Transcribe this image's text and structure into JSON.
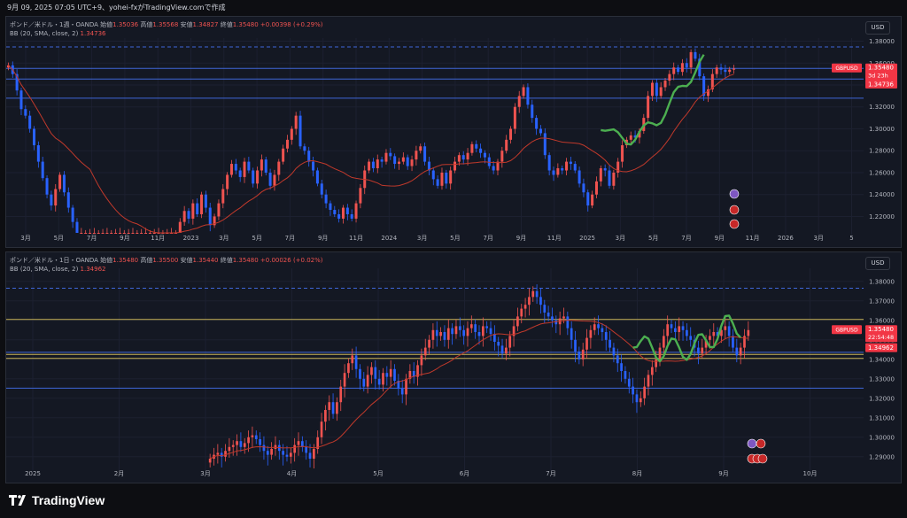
{
  "header_line": "9月 09, 2025 07:05 UTC+9、yohei-fxがTradingView.comで作成",
  "currency_button": "USD",
  "chart_data": [
    {
      "type": "candlestick",
      "panel": "weekly",
      "symbol_label": "ポンド／米ドル・1週・OANDA",
      "ohlc_labels": {
        "open": "始値",
        "high": "高値",
        "low": "安値",
        "close": "終値"
      },
      "open": "1.35036",
      "high": "1.35568",
      "low": "1.34827",
      "close": "1.35480",
      "change": "+0.00398 (+0.29%)",
      "indicator_label": "BB (20, SMA, close, 2)",
      "indicator_value": "1.34736",
      "ylim": [
        1.205,
        1.378
      ],
      "y_ticks": [
        "1.38000",
        "1.36000",
        "1.34000",
        "1.32000",
        "1.30000",
        "1.28000",
        "1.26000",
        "1.24000",
        "1.22000"
      ],
      "x_ticks": [
        "3月",
        "5月",
        "7月",
        "9月",
        "11月",
        "2023",
        "3月",
        "5月",
        "7月",
        "9月",
        "11月",
        "2024",
        "3月",
        "5月",
        "7月",
        "9月",
        "11月",
        "2025",
        "3月",
        "5月",
        "7月",
        "9月",
        "11月",
        "2026",
        "3月",
        "5"
      ],
      "price_tag": {
        "symbol": "GBPUSD",
        "price": "1.35480",
        "countdown": "3d 23h"
      },
      "bb_tag": "1.34736",
      "horizontal_levels": [
        1.3748,
        1.3552,
        1.3455,
        1.328
      ],
      "series_close": [
        1.358,
        1.35,
        1.335,
        1.318,
        1.312,
        1.3,
        1.285,
        1.27,
        1.255,
        1.24,
        1.23,
        1.245,
        1.258,
        1.242,
        1.228,
        1.215,
        1.205,
        1.205,
        1.205,
        1.205,
        1.205,
        1.205,
        1.205,
        1.205,
        1.205,
        1.205,
        1.205,
        1.205,
        1.205,
        1.205,
        1.205,
        1.205,
        1.205,
        1.205,
        1.205,
        1.205,
        1.205,
        1.205,
        1.205,
        1.205,
        1.215,
        1.225,
        1.218,
        1.232,
        1.222,
        1.24,
        1.228,
        1.212,
        1.22,
        1.232,
        1.245,
        1.258,
        1.268,
        1.262,
        1.256,
        1.27,
        1.262,
        1.25,
        1.262,
        1.272,
        1.26,
        1.248,
        1.258,
        1.27,
        1.282,
        1.29,
        1.3,
        1.312,
        1.284,
        1.28,
        1.27,
        1.262,
        1.25,
        1.24,
        1.232,
        1.226,
        1.222,
        1.218,
        1.228,
        1.222,
        1.218,
        1.232,
        1.246,
        1.262,
        1.27,
        1.264,
        1.272,
        1.27,
        1.278,
        1.275,
        1.268,
        1.27,
        1.274,
        1.266,
        1.272,
        1.28,
        1.284,
        1.27,
        1.262,
        1.254,
        1.248,
        1.26,
        1.25,
        1.262,
        1.27,
        1.276,
        1.272,
        1.278,
        1.286,
        1.282,
        1.278,
        1.274,
        1.266,
        1.262,
        1.27,
        1.28,
        1.29,
        1.3,
        1.32,
        1.33,
        1.338,
        1.322,
        1.31,
        1.3,
        1.296,
        1.276,
        1.262,
        1.258,
        1.264,
        1.262,
        1.27,
        1.268,
        1.262,
        1.25,
        1.242,
        1.23,
        1.24,
        1.252,
        1.264,
        1.262,
        1.248,
        1.26,
        1.27,
        1.285,
        1.29,
        1.294,
        1.292,
        1.298,
        1.31,
        1.33,
        1.342,
        1.33,
        1.338,
        1.344,
        1.35,
        1.356,
        1.352,
        1.36,
        1.356,
        1.37,
        1.364,
        1.348,
        1.33,
        1.336,
        1.35,
        1.356,
        1.354,
        1.352,
        1.354,
        1.355
      ]
    },
    {
      "type": "candlestick",
      "panel": "daily",
      "symbol_label": "ポンド／米ドル・1日・OANDA",
      "ohlc_labels": {
        "open": "始値",
        "high": "高値",
        "low": "安値",
        "close": "終値"
      },
      "open": "1.35480",
      "high": "1.35500",
      "low": "1.35440",
      "close": "1.35480",
      "change": "+0.00026 (+0.02%)",
      "indicator_label": "BB (20, SMA, close, 2)",
      "indicator_value": "1.34962",
      "ylim": [
        1.284,
        1.384
      ],
      "y_ticks": [
        "1.38000",
        "1.37000",
        "1.36000",
        "1.35000",
        "1.34000",
        "1.33000",
        "1.32000",
        "1.31000",
        "1.30000",
        "1.29000"
      ],
      "x_ticks": [
        "2025",
        "2月",
        "3月",
        "4月",
        "5月",
        "6月",
        "7月",
        "8月",
        "9月",
        "10月"
      ],
      "price_tag": {
        "symbol": "GBPUSD",
        "price": "1.35480",
        "countdown": "22:54:48"
      },
      "bb_tag": "1.34962",
      "horizontal_levels": [
        1.3765,
        1.3605,
        1.3436,
        1.3425,
        1.3405,
        1.3252
      ],
      "series_close": [
        1.289,
        1.291,
        1.292,
        1.29,
        1.293,
        1.295,
        1.296,
        1.298,
        1.295,
        1.297,
        1.3,
        1.301,
        1.299,
        1.296,
        1.293,
        1.291,
        1.294,
        1.296,
        1.293,
        1.291,
        1.29,
        1.292,
        1.296,
        1.298,
        1.295,
        1.292,
        1.289,
        1.294,
        1.3,
        1.308,
        1.314,
        1.318,
        1.312,
        1.318,
        1.326,
        1.333,
        1.338,
        1.342,
        1.335,
        1.33,
        1.326,
        1.332,
        1.336,
        1.33,
        1.327,
        1.333,
        1.331,
        1.335,
        1.329,
        1.325,
        1.322,
        1.33,
        1.334,
        1.331,
        1.337,
        1.342,
        1.346,
        1.35,
        1.355,
        1.352,
        1.354,
        1.35,
        1.356,
        1.353,
        1.357,
        1.355,
        1.352,
        1.356,
        1.358,
        1.354,
        1.352,
        1.357,
        1.356,
        1.353,
        1.349,
        1.347,
        1.343,
        1.346,
        1.352,
        1.357,
        1.362,
        1.366,
        1.368,
        1.372,
        1.375,
        1.372,
        1.368,
        1.364,
        1.362,
        1.36,
        1.358,
        1.361,
        1.362,
        1.356,
        1.35,
        1.344,
        1.34,
        1.345,
        1.351,
        1.355,
        1.358,
        1.356,
        1.354,
        1.35,
        1.346,
        1.342,
        1.338,
        1.334,
        1.33,
        1.326,
        1.322,
        1.318,
        1.32,
        1.326,
        1.332,
        1.336,
        1.34,
        1.346,
        1.352,
        1.358,
        1.356,
        1.354,
        1.357,
        1.355,
        1.352,
        1.35,
        1.346,
        1.343,
        1.346,
        1.35,
        1.352,
        1.354,
        1.352,
        1.355,
        1.357,
        1.352,
        1.346,
        1.342,
        1.346,
        1.352,
        1.355
      ]
    }
  ],
  "footer": {
    "brand": "TradingView"
  }
}
